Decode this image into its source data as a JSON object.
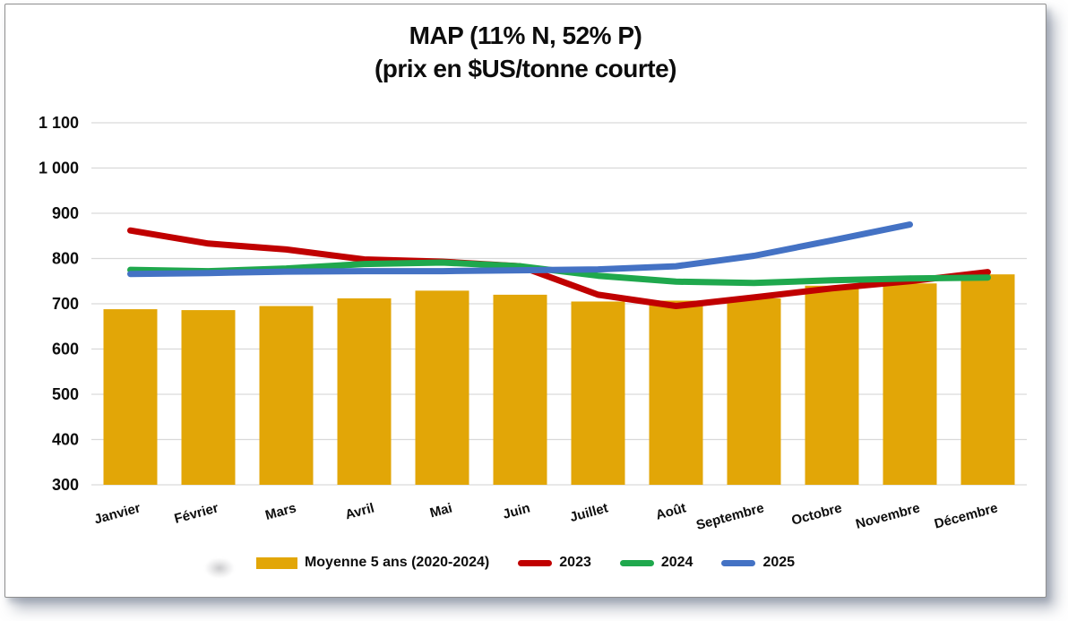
{
  "chart": {
    "title_line1": "MAP (11% N, 52% P)",
    "title_line2": "(prix en $US/tonne courte)"
  },
  "legend": {
    "items": [
      {
        "label": "Moyenne 5 ans (2020-2024)",
        "color": "#E2A607",
        "type": "bar"
      },
      {
        "label": "2023",
        "color": "#C00000",
        "type": "line"
      },
      {
        "label": "2024",
        "color": "#1FA84D",
        "type": "line"
      },
      {
        "label": "2025",
        "color": "#4472C4",
        "type": "line"
      }
    ]
  },
  "chart_data": {
    "type": "bar",
    "subtype": "bar-line-combo",
    "title": "MAP (11% N, 52% P)",
    "subtitle": "(prix en $US/tonne courte)",
    "categories": [
      "Janvier",
      "Février",
      "Mars",
      "Avril",
      "Mai",
      "Juin",
      "Juillet",
      "Août",
      "Septembre",
      "Octobre",
      "Novembre",
      "Décembre"
    ],
    "bar_series": {
      "name": "Moyenne 5 ans (2020-2024)",
      "color": "#E2A607",
      "values": [
        688,
        686,
        695,
        712,
        729,
        720,
        705,
        707,
        712,
        740,
        745,
        765
      ]
    },
    "line_series": [
      {
        "name": "2023",
        "color": "#C00000",
        "values": [
          862,
          833,
          820,
          798,
          793,
          783,
          720,
          695,
          714,
          734,
          750,
          770
        ]
      },
      {
        "name": "2024",
        "color": "#1FA84D",
        "values": [
          775,
          772,
          778,
          788,
          791,
          783,
          762,
          749,
          746,
          752,
          756,
          758
        ]
      },
      {
        "name": "2025",
        "color": "#4472C4",
        "values": [
          766,
          768,
          771,
          772,
          772,
          774,
          776,
          783,
          806,
          840,
          875,
          null
        ]
      }
    ],
    "ylim": [
      300,
      1100
    ],
    "yticks": {
      "values": [
        300,
        400,
        500,
        600,
        700,
        800,
        900,
        1000,
        1100
      ],
      "labels": [
        "300",
        "400",
        "500",
        "600",
        "700",
        "800",
        "900",
        "1 000",
        "1 100"
      ]
    },
    "xlabel": "",
    "ylabel": "",
    "grid": "horizontal",
    "legend_position": "bottom",
    "colors": {
      "grid": "#D9D9D9",
      "bar": "#E2A607",
      "text": "#0d0d0d"
    }
  }
}
